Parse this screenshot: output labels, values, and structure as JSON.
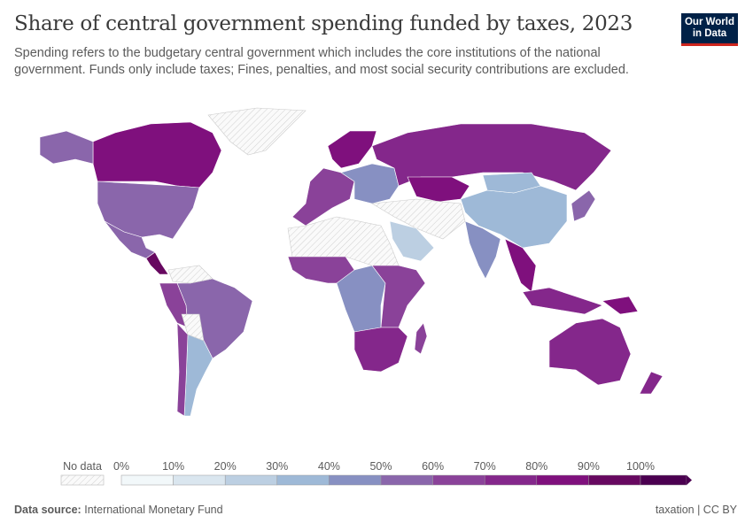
{
  "header": {
    "title": "Share of central government spending funded by taxes, 2023",
    "subtitle": "Spending refers to the budgetary central government which includes the core institutions of the national government. Funds only include taxes; Fines, penalties, and most social security contributions are excluded.",
    "logo": "Our World in Data"
  },
  "legend": {
    "no_data_label": "No data",
    "ticks": [
      "0%",
      "10%",
      "20%",
      "30%",
      "40%",
      "50%",
      "60%",
      "70%",
      "80%",
      "90%",
      "100%"
    ],
    "bin_colors": [
      "#f2f8fa",
      "#dae6ef",
      "#bccfe2",
      "#9eb9d7",
      "#8790c2",
      "#8a66ab",
      "#8a4299",
      "#84278b",
      "#7f107d",
      "#670860",
      "#4b0050"
    ],
    "no_data_color": "#e8e8e8"
  },
  "map": {
    "regions": [
      {
        "name": "canada",
        "color": "#7f107d"
      },
      {
        "name": "united-states",
        "color": "#8a66ab"
      },
      {
        "name": "alaska",
        "color": "#8a66ab"
      },
      {
        "name": "greenland",
        "color": "nodata"
      },
      {
        "name": "mexico",
        "color": "#8a66ab"
      },
      {
        "name": "central-america",
        "color": "#670860"
      },
      {
        "name": "brazil",
        "color": "#8a66ab"
      },
      {
        "name": "peru",
        "color": "#8a4299"
      },
      {
        "name": "argentina",
        "color": "#9eb9d7"
      },
      {
        "name": "chile",
        "color": "#8a4299"
      },
      {
        "name": "bolivia",
        "color": "nodata"
      },
      {
        "name": "venezuela",
        "color": "nodata"
      },
      {
        "name": "western-europe",
        "color": "#8a4299"
      },
      {
        "name": "scandinavia",
        "color": "#7f107d"
      },
      {
        "name": "eastern-europe",
        "color": "#8790c2"
      },
      {
        "name": "russia",
        "color": "#84278b"
      },
      {
        "name": "kazakhstan",
        "color": "#7f107d"
      },
      {
        "name": "china",
        "color": "#9eb9d7"
      },
      {
        "name": "mongolia",
        "color": "#9eb9d7"
      },
      {
        "name": "india",
        "color": "#8790c2"
      },
      {
        "name": "middle-east",
        "color": "nodata"
      },
      {
        "name": "saudi-arabia",
        "color": "#bccfe2"
      },
      {
        "name": "north-africa",
        "color": "nodata"
      },
      {
        "name": "west-africa",
        "color": "#8a4299"
      },
      {
        "name": "central-africa",
        "color": "#8790c2"
      },
      {
        "name": "east-africa",
        "color": "#8a4299"
      },
      {
        "name": "southern-africa",
        "color": "#84278b"
      },
      {
        "name": "madagascar",
        "color": "#8a4299"
      },
      {
        "name": "southeast-asia",
        "color": "#7f107d"
      },
      {
        "name": "indonesia",
        "color": "#84278b"
      },
      {
        "name": "japan",
        "color": "#8a66ab"
      },
      {
        "name": "australia",
        "color": "#84278b"
      },
      {
        "name": "new-zealand",
        "color": "#84278b"
      },
      {
        "name": "papua-new-guinea",
        "color": "#7f107d"
      }
    ]
  },
  "footer": {
    "source_label": "Data source:",
    "source": "International Monetary Fund",
    "right": "taxation | CC BY"
  }
}
